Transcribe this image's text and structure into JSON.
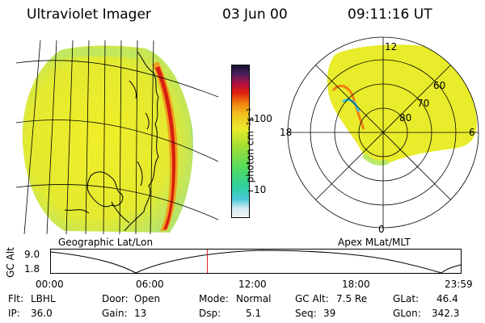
{
  "header": {
    "instrument": "Ultraviolet Imager",
    "date": "03 Jun 00",
    "time": "09:11:16 UT"
  },
  "colorbar": {
    "label": "photon cm⁻²s⁻¹",
    "ticks": [
      "100",
      "10"
    ]
  },
  "earth_panel": {
    "caption": "Geographic Lat/Lon"
  },
  "polar_panel": {
    "caption": "Apex MLat/MLT",
    "mlt_labels": {
      "top": "12",
      "left": "18",
      "right": "6",
      "bottom": "0"
    },
    "lat_labels": [
      "60",
      "70",
      "80"
    ]
  },
  "altitude_plot": {
    "ylabel": "GC Alt",
    "y_ticks": [
      "9.0",
      "1.8"
    ],
    "x_ticks": [
      "00:00",
      "06:00",
      "12:00",
      "18:00",
      "23:59"
    ],
    "current_time_hours": 9.19
  },
  "info": {
    "flt_label": "Flt:",
    "flt_value": "LBHL",
    "ip_label": "IP:",
    "ip_value": "36.0",
    "door_label": "Door:",
    "door_value": "Open",
    "gain_label": "Gain:",
    "gain_value": "13",
    "mode_label": "Mode:",
    "mode_value": "Normal",
    "dsp_label": "Dsp:",
    "dsp_value": "5.1",
    "gcalt_label": "GC Alt:",
    "gcalt_value": "7.5 Re",
    "seq_label": "Seq:",
    "seq_value": "39",
    "glat_label": "GLat:",
    "glat_value": "46.4",
    "glon_label": "GLon:",
    "glon_value": "342.3"
  },
  "colors": {
    "image_base": "#e8ec2a",
    "aurora": "#e03a10",
    "marker": "#e02020"
  }
}
